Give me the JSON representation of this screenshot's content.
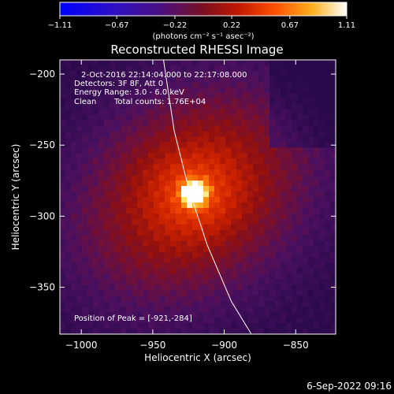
{
  "chart_data": {
    "type": "heatmap",
    "title": "Reconstructed RHESSI Image",
    "xlabel": "Heliocentric X (arcsec)",
    "ylabel": "Heliocentric Y (arcsec)",
    "xlim": [
      -1015,
      -822
    ],
    "ylim": [
      -383,
      -190
    ],
    "x_ticks": [
      -1000,
      -950,
      -900,
      -850
    ],
    "x_tick_labels": [
      "−1000",
      "−950",
      "−900",
      "−850"
    ],
    "y_ticks": [
      -200,
      -250,
      -300,
      -350
    ],
    "y_tick_labels": [
      "−200",
      "−250",
      "−300",
      "−350"
    ],
    "colorbar": {
      "min": -1.11,
      "max": 1.11,
      "ticks": [
        -1.11,
        -0.67,
        -0.22,
        0.22,
        0.67,
        1.11
      ],
      "tick_labels": [
        "−1.11",
        "−0.67",
        "−0.22",
        "0.22",
        "0.67",
        "1.11"
      ],
      "unit_label": "(photons cm⁻² s⁻¹ asec⁻²)"
    },
    "peak": {
      "x": -921,
      "y": -284
    },
    "limb_curve": [
      {
        "x": -942.5,
        "y": -190
      },
      {
        "x": -935,
        "y": -240
      },
      {
        "x": -925,
        "y": -280
      },
      {
        "x": -912,
        "y": -320
      },
      {
        "x": -895,
        "y": -360
      },
      {
        "x": -881,
        "y": -383
      }
    ],
    "annotations": [
      "2-Oct-2016 22:14:04.000 to 22:17:08.000",
      "Detectors: 3F 8F, Att 0",
      "Energy Range: 3.0 - 6.0 keV",
      "Clean",
      "Total counts: 1.76E+04",
      "Position of Peak = [-921,-284]"
    ],
    "colors": {
      "colormap": [
        "#0000ff",
        "#4010a0",
        "#5a1080",
        "#8a1010",
        "#d02000",
        "#ff7000",
        "#ffd040",
        "#ffffff"
      ],
      "limb": "#ffffff",
      "background": "#000000"
    }
  },
  "footer": {
    "timestamp": "6-Sep-2022 09:16"
  }
}
